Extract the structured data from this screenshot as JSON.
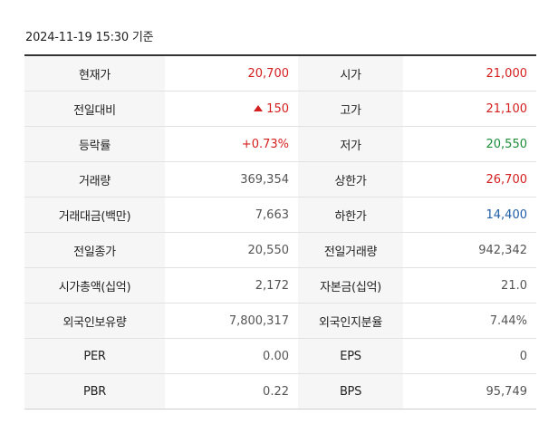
{
  "as_of": "2024-11-19 15:30 기준",
  "rows": [
    {
      "l1": "현재가",
      "v1": "20,700",
      "l2": "시가",
      "v2": "21,000"
    },
    {
      "l1": "전일대비",
      "v1": "150",
      "l2": "고가",
      "v2": "21,100"
    },
    {
      "l1": "등락률",
      "v1": "+0.73%",
      "l2": "저가",
      "v2": "20,550"
    },
    {
      "l1": "거래량",
      "v1": "369,354",
      "l2": "상한가",
      "v2": "26,700"
    },
    {
      "l1": "거래대금(백만)",
      "v1": "7,663",
      "l2": "하한가",
      "v2": "14,400"
    },
    {
      "l1": "전일종가",
      "v1": "20,550",
      "l2": "전일거래량",
      "v2": "942,342"
    },
    {
      "l1": "시가총액(십억)",
      "v1": "2,172",
      "l2": "자본금(십억)",
      "v2": "21.0"
    },
    {
      "l1": "외국인보유량",
      "v1": "7,800,317",
      "l2": "외국인지분율",
      "v2": "7.44%"
    },
    {
      "l1": "PER",
      "v1": "0.00",
      "l2": "EPS",
      "v2": "0"
    },
    {
      "l1": "PBR",
      "v1": "0.22",
      "l2": "BPS",
      "v2": "95,749"
    }
  ],
  "change_direction": "up-triangle-icon",
  "colors": {
    "up": "#d51e1e",
    "down_low": "#1d8d3a",
    "lower_limit": "#1f5fa8",
    "label_bg": "#f6f6f6"
  }
}
